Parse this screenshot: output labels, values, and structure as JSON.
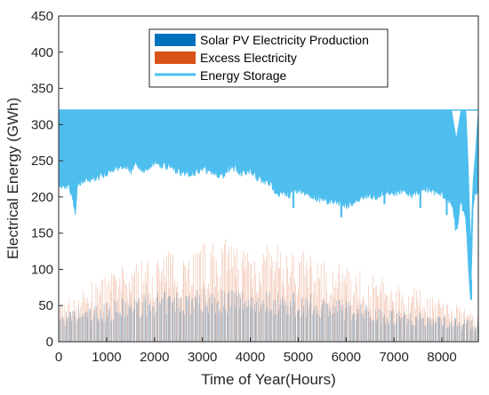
{
  "chart_data": {
    "type": "area",
    "title": "",
    "xlabel": "Time of Year(Hours)",
    "ylabel": "Electrical Energy (GWh)",
    "xlim": [
      0,
      8760
    ],
    "ylim": [
      0,
      450
    ],
    "xticks": [
      0,
      1000,
      2000,
      3000,
      4000,
      5000,
      6000,
      7000,
      8000
    ],
    "yticks": [
      0,
      50,
      100,
      150,
      200,
      250,
      300,
      350,
      400,
      450
    ],
    "grid": false,
    "legend_position": "top-center",
    "colors": {
      "solar": "#0072BD",
      "excess": "#D95319",
      "storage": "#4DBEEE"
    },
    "legend": [
      {
        "label": "Solar PV Electricity Production",
        "color": "#0072BD",
        "kind": "patch"
      },
      {
        "label": "Excess Electricity",
        "color": "#D95319",
        "kind": "patch"
      },
      {
        "label": "Energy Storage",
        "color": "#4DBEEE",
        "kind": "line"
      }
    ],
    "series": [
      {
        "name": "Solar PV Electricity Production",
        "style": "daily-peaks",
        "x": [
          0,
          500,
          1000,
          1500,
          2000,
          2500,
          3000,
          3500,
          4000,
          4500,
          5000,
          5500,
          6000,
          6500,
          7000,
          7500,
          8000,
          8500,
          8760
        ],
        "peak": [
          40,
          48,
          55,
          62,
          68,
          72,
          75,
          76,
          75,
          72,
          68,
          64,
          58,
          52,
          47,
          42,
          38,
          32,
          30
        ]
      },
      {
        "name": "Excess Electricity",
        "style": "daily-peaks",
        "x": [
          0,
          500,
          1000,
          1500,
          2000,
          2500,
          3000,
          3500,
          4000,
          4500,
          5000,
          5500,
          6000,
          6500,
          7000,
          7500,
          8000,
          8500,
          8760
        ],
        "peak": [
          55,
          75,
          95,
          110,
          122,
          132,
          138,
          142,
          140,
          135,
          128,
          118,
          105,
          95,
          85,
          75,
          62,
          45,
          40
        ]
      },
      {
        "name": "Energy Storage",
        "style": "band",
        "x": [
          0,
          200,
          300,
          350,
          400,
          600,
          800,
          1000,
          1200,
          1400,
          1500,
          1600,
          1800,
          2000,
          2200,
          2400,
          2600,
          2800,
          3000,
          3200,
          3400,
          3600,
          3800,
          4000,
          4200,
          4400,
          4600,
          4800,
          5000,
          5200,
          5400,
          5600,
          5800,
          6000,
          6200,
          6400,
          6600,
          6800,
          7000,
          7200,
          7400,
          7600,
          7800,
          8000,
          8200,
          8300,
          8400,
          8500,
          8550,
          8600,
          8650,
          8700,
          8760
        ],
        "upper": [
          320,
          320,
          320,
          320,
          320,
          320,
          320,
          320,
          320,
          320,
          320,
          320,
          320,
          320,
          320,
          320,
          320,
          320,
          320,
          320,
          320,
          320,
          320,
          320,
          320,
          320,
          320,
          320,
          320,
          320,
          320,
          320,
          320,
          320,
          320,
          320,
          320,
          320,
          320,
          320,
          320,
          320,
          320,
          320,
          320,
          280,
          320,
          320,
          240,
          130,
          220,
          260,
          320
        ],
        "lower": [
          225,
          222,
          205,
          180,
          225,
          230,
          233,
          240,
          248,
          250,
          240,
          252,
          243,
          255,
          250,
          245,
          240,
          238,
          245,
          243,
          235,
          250,
          238,
          240,
          230,
          225,
          210,
          210,
          215,
          212,
          205,
          200,
          200,
          195,
          200,
          210,
          205,
          215,
          212,
          215,
          210,
          220,
          215,
          210,
          200,
          155,
          205,
          175,
          110,
          60,
          190,
          215,
          210
        ],
        "dips": [
          [
            350,
            180
          ],
          [
            4900,
            185
          ],
          [
            5900,
            172
          ],
          [
            6800,
            190
          ],
          [
            7550,
            185
          ],
          [
            8100,
            175
          ],
          [
            8300,
            155
          ],
          [
            8440,
            180
          ],
          [
            8610,
            58
          ]
        ]
      }
    ]
  }
}
